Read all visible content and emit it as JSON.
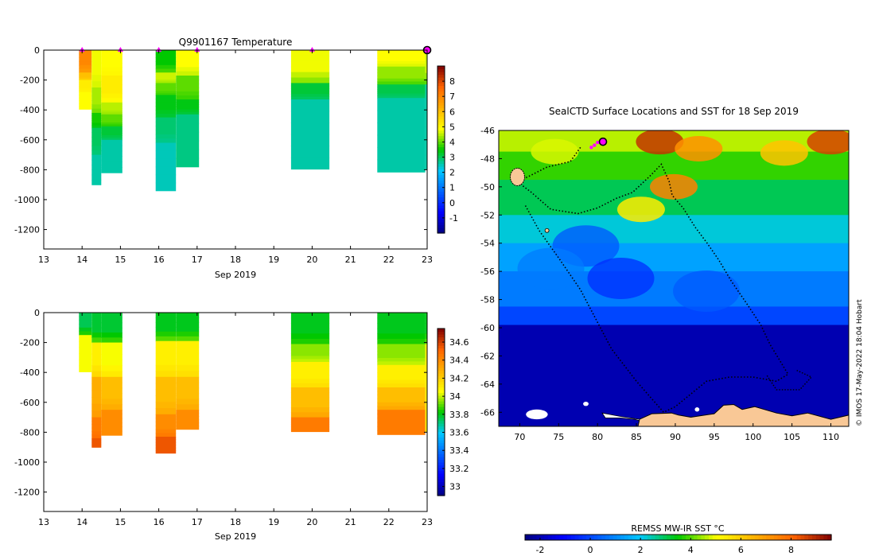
{
  "chart_data": [
    {
      "type": "heatmap",
      "title": "Q9901167  Temperature",
      "xlabel": "Sep 2019",
      "x_ticks": [
        "13",
        "14",
        "15",
        "16",
        "17",
        "18",
        "19",
        "20",
        "21",
        "22",
        "23"
      ],
      "xlim": [
        13,
        23
      ],
      "y_ticks": [
        0,
        -200,
        -400,
        -600,
        -800,
        -1000,
        -1200
      ],
      "ylim": [
        -1330,
        0
      ],
      "profile_markers": [
        14,
        15,
        16,
        17,
        20
      ],
      "latest_marker": 23,
      "colorbar": {
        "min": -2,
        "max": 9,
        "ticks": [
          "8",
          "7",
          "6",
          "5",
          "4",
          "3",
          "2",
          "1",
          "0",
          "-1"
        ]
      },
      "profiles": [
        {
          "x0": 13.92,
          "x1": 14.25,
          "bottom": -395,
          "layers": [
            [
              0,
              -150,
              7.0
            ],
            [
              -150,
              -200,
              6.0
            ],
            [
              -200,
              -280,
              5.2
            ],
            [
              -280,
              -395,
              4.9
            ]
          ]
        },
        {
          "x0": 14.25,
          "x1": 14.5,
          "bottom": -900,
          "layers": [
            [
              0,
              -250,
              4.8
            ],
            [
              -250,
              -420,
              4.4
            ],
            [
              -420,
              -520,
              3.6
            ],
            [
              -520,
              -700,
              3.0
            ],
            [
              -700,
              -900,
              2.6
            ]
          ]
        },
        {
          "x0": 14.5,
          "x1": 15.05,
          "bottom": -820,
          "layers": [
            [
              0,
              -170,
              4.9
            ],
            [
              -170,
              -350,
              5.2
            ],
            [
              -350,
              -430,
              4.5
            ],
            [
              -430,
              -510,
              4.0
            ],
            [
              -510,
              -600,
              3.2
            ],
            [
              -600,
              -820,
              2.6
            ]
          ]
        },
        {
          "x0": 15.92,
          "x1": 16.45,
          "bottom": -940,
          "layers": [
            [
              0,
              -150,
              3.5
            ],
            [
              -150,
              -220,
              4.6
            ],
            [
              -220,
              -300,
              4.0
            ],
            [
              -300,
              -450,
              3.4
            ],
            [
              -450,
              -620,
              2.9
            ],
            [
              -620,
              -940,
              2.5
            ]
          ]
        },
        {
          "x0": 16.45,
          "x1": 17.05,
          "bottom": -780,
          "layers": [
            [
              0,
              -170,
              4.9
            ],
            [
              -170,
              -330,
              4.0
            ],
            [
              -330,
              -430,
              3.4
            ],
            [
              -430,
              -780,
              2.8
            ]
          ]
        },
        {
          "x0": 19.45,
          "x1": 20.45,
          "bottom": -795,
          "layers": [
            [
              0,
              -220,
              4.8
            ],
            [
              -220,
              -330,
              3.2
            ],
            [
              -330,
              -795,
              2.6
            ]
          ]
        },
        {
          "x0": 21.7,
          "x1": 22.95,
          "bottom": -815,
          "layers": [
            [
              0,
              -110,
              4.9
            ],
            [
              -110,
              -230,
              4.3
            ],
            [
              -230,
              -320,
              3.1
            ],
            [
              -320,
              -815,
              2.6
            ]
          ]
        },
        {
          "x0": 22.95,
          "x1": 23.05,
          "bottom": -795,
          "layers": [
            [
              0,
              -230,
              4.6
            ],
            [
              -230,
              -795,
              2.6
            ]
          ]
        }
      ]
    },
    {
      "type": "heatmap",
      "title": "",
      "xlabel": "Sep 2019",
      "x_ticks": [
        "13",
        "14",
        "15",
        "16",
        "17",
        "18",
        "19",
        "20",
        "21",
        "22",
        "23"
      ],
      "xlim": [
        13,
        23
      ],
      "y_ticks": [
        0,
        -200,
        -400,
        -600,
        -800,
        -1000,
        -1200
      ],
      "ylim": [
        -1330,
        0
      ],
      "colorbar": {
        "min": 32.9,
        "max": 34.75,
        "ticks": [
          "34.6",
          "34.4",
          "34.2",
          "34",
          "33.8",
          "33.6",
          "33.4",
          "33.2",
          "33"
        ]
      },
      "profiles": [
        {
          "x0": 13.92,
          "x1": 14.25,
          "bottom": -395,
          "layers": [
            [
              0,
              -150,
              33.75
            ],
            [
              -150,
              -395,
              34.05
            ]
          ]
        },
        {
          "x0": 14.25,
          "x1": 14.5,
          "bottom": -900,
          "layers": [
            [
              0,
              -200,
              33.78
            ],
            [
              -200,
              -430,
              34.1
            ],
            [
              -430,
              -700,
              34.3
            ],
            [
              -700,
              -840,
              34.45
            ],
            [
              -840,
              -900,
              34.55
            ]
          ]
        },
        {
          "x0": 14.5,
          "x1": 15.05,
          "bottom": -820,
          "layers": [
            [
              0,
              -200,
              33.78
            ],
            [
              -200,
              -430,
              34.05
            ],
            [
              -430,
              -650,
              34.25
            ],
            [
              -650,
              -820,
              34.4
            ]
          ]
        },
        {
          "x0": 15.92,
          "x1": 16.45,
          "bottom": -940,
          "layers": [
            [
              0,
              -190,
              33.8
            ],
            [
              -190,
              -430,
              34.1
            ],
            [
              -430,
              -680,
              34.25
            ],
            [
              -680,
              -830,
              34.4
            ],
            [
              -830,
              -940,
              34.55
            ]
          ]
        },
        {
          "x0": 16.45,
          "x1": 17.05,
          "bottom": -780,
          "layers": [
            [
              0,
              -190,
              33.8
            ],
            [
              -190,
              -430,
              34.1
            ],
            [
              -430,
              -650,
              34.25
            ],
            [
              -650,
              -780,
              34.4
            ]
          ]
        },
        {
          "x0": 19.45,
          "x1": 20.45,
          "bottom": -795,
          "layers": [
            [
              0,
              -210,
              33.8
            ],
            [
              -210,
              -330,
              33.95
            ],
            [
              -330,
              -500,
              34.1
            ],
            [
              -500,
              -700,
              34.25
            ],
            [
              -700,
              -795,
              34.45
            ]
          ]
        },
        {
          "x0": 21.7,
          "x1": 22.95,
          "bottom": -815,
          "layers": [
            [
              0,
              -210,
              33.8
            ],
            [
              -210,
              -350,
              33.95
            ],
            [
              -350,
              -500,
              34.1
            ],
            [
              -500,
              -650,
              34.25
            ],
            [
              -650,
              -815,
              34.45
            ]
          ]
        },
        {
          "x0": 22.95,
          "x1": 23.05,
          "bottom": -795,
          "layers": [
            [
              0,
              -210,
              33.8
            ],
            [
              -210,
              -795,
              34.1
            ]
          ]
        }
      ]
    },
    {
      "type": "heatmap",
      "title": "SealCTD Surface Locations and SST for 18 Sep 2019",
      "xlabel": "",
      "ylabel": "",
      "x_ticks": [
        "70",
        "75",
        "80",
        "85",
        "90",
        "95",
        "100",
        "105",
        "110"
      ],
      "x_tick_values": [
        70,
        75,
        80,
        85,
        90,
        95,
        100,
        105,
        110
      ],
      "xlim": [
        67.3,
        112.3
      ],
      "y_ticks": [
        "-46",
        "-48",
        "-50",
        "-52",
        "-54",
        "-56",
        "-58",
        "-60",
        "-62",
        "-64",
        "-66"
      ],
      "y_tick_values": [
        -46,
        -48,
        -50,
        -52,
        -54,
        -56,
        -58,
        -60,
        -62,
        -64,
        -66
      ],
      "ylim": [
        -67,
        -46
      ],
      "colorbar": {
        "label": "REMSS MW-IR SST °C",
        "min": -2.6,
        "max": 9.6,
        "ticks": [
          "-2",
          "0",
          "2",
          "4",
          "6",
          "8"
        ],
        "tick_values": [
          -2,
          0,
          2,
          4,
          6,
          8
        ]
      },
      "sst_zones": [
        {
          "lat_top": -46,
          "lat_bottom": -47.5,
          "sst": 4.6
        },
        {
          "lat_top": -47.5,
          "lat_bottom": -49.5,
          "sst": 3.8
        },
        {
          "lat_top": -49.5,
          "lat_bottom": -52,
          "sst": 3.0
        },
        {
          "lat_top": -52,
          "lat_bottom": -54,
          "sst": 2.2
        },
        {
          "lat_top": -54,
          "lat_bottom": -56,
          "sst": 1.4
        },
        {
          "lat_top": -56,
          "lat_bottom": -58.5,
          "sst": 0.8
        },
        {
          "lat_top": -58.5,
          "lat_bottom": -59.8,
          "sst": 0.0
        },
        {
          "lat_top": -59.8,
          "lat_bottom": -67,
          "sst": -2.0
        }
      ],
      "warm_patches": [
        {
          "lon": 88,
          "lat": -46.8,
          "sst": 8.8
        },
        {
          "lon": 93,
          "lat": -47.3,
          "sst": 7.2
        },
        {
          "lon": 110,
          "lat": -46.8,
          "sst": 8.6
        },
        {
          "lon": 104,
          "lat": -47.6,
          "sst": 6.2
        },
        {
          "lon": 89.8,
          "lat": -50.0,
          "sst": 7.5
        },
        {
          "lon": 85.6,
          "lat": -51.6,
          "sst": 5.4
        },
        {
          "lon": 74.5,
          "lat": -47.5,
          "sst": 4.8
        }
      ],
      "cool_patches": [
        {
          "lon": 78.5,
          "lat": -54.2,
          "sst": 0.2
        },
        {
          "lon": 83,
          "lat": -56.5,
          "sst": -0.4
        },
        {
          "lon": 94,
          "lat": -57.4,
          "sst": 0.3
        },
        {
          "lon": 74,
          "lat": -55.8,
          "sst": 0.8
        }
      ],
      "track": [
        [
          77.8,
          -47.2
        ],
        [
          76.5,
          -48.2
        ],
        [
          73.5,
          -48.6
        ],
        [
          71,
          -49.3
        ],
        [
          69.6,
          -49.6
        ],
        [
          71.5,
          -50.4
        ],
        [
          74,
          -51.6
        ],
        [
          77.5,
          -51.9
        ],
        [
          80,
          -51.5
        ],
        [
          82.5,
          -50.8
        ],
        [
          84.5,
          -50.4
        ],
        [
          86.8,
          -49.2
        ],
        [
          88.2,
          -48.4
        ],
        [
          89.2,
          -49.6
        ],
        [
          89.6,
          -50.6
        ],
        [
          91,
          -51.5
        ],
        [
          92.6,
          -52.9
        ],
        [
          94.1,
          -54
        ],
        [
          95.6,
          -55.2
        ],
        [
          97.2,
          -56.7
        ],
        [
          99.2,
          -58.3
        ],
        [
          101,
          -59.8
        ],
        [
          102.2,
          -61.2
        ],
        [
          103.3,
          -62.2
        ],
        [
          104.5,
          -63.3
        ],
        [
          103,
          -63.8
        ],
        [
          100,
          -63.5
        ],
        [
          97,
          -63.5
        ],
        [
          94,
          -63.8
        ],
        [
          92,
          -64.7
        ],
        [
          90,
          -65.6
        ],
        [
          88.5,
          -66
        ],
        [
          85,
          -63.8
        ],
        [
          81.8,
          -61.5
        ],
        [
          79.8,
          -59.4
        ],
        [
          77.8,
          -57.3
        ],
        [
          75.2,
          -55.2
        ],
        [
          72.5,
          -53.1
        ],
        [
          70.7,
          -51.3
        ]
      ],
      "track2": [
        [
          101.8,
          -63.4
        ],
        [
          103,
          -64.4
        ],
        [
          106,
          -64.4
        ],
        [
          107.5,
          -63.5
        ],
        [
          105.5,
          -63
        ]
      ],
      "kerguelen": {
        "lon": 69.7,
        "lat": -49.3
      },
      "heard": {
        "lon": 73.5,
        "lat": -53.1
      },
      "latest_fix": {
        "lon": 80.7,
        "lat": -46.8
      },
      "recent_fixes": [
        [
          79.2,
          -47.2
        ],
        [
          79.6,
          -47.05
        ],
        [
          80.0,
          -46.85
        ]
      ],
      "antarctica": [
        [
          85.2,
          -67
        ],
        [
          85.4,
          -66.5
        ],
        [
          87,
          -66.1
        ],
        [
          89.5,
          -66.05
        ],
        [
          90.4,
          -66.2
        ],
        [
          92,
          -66.35
        ],
        [
          95,
          -66.1
        ],
        [
          96.2,
          -65.5
        ],
        [
          97.5,
          -65.45
        ],
        [
          98.6,
          -65.8
        ],
        [
          100.2,
          -65.6
        ],
        [
          103,
          -66.05
        ],
        [
          105,
          -66.25
        ],
        [
          107,
          -66.05
        ],
        [
          110,
          -66.5
        ],
        [
          112.3,
          -66.2
        ],
        [
          112.3,
          -67
        ]
      ],
      "ice_shelf": [
        [
          80.6,
          -66.05
        ],
        [
          83,
          -66.3
        ],
        [
          85.4,
          -66.5
        ],
        [
          87,
          -66.1
        ],
        [
          89.5,
          -66.05
        ],
        [
          88.8,
          -66.6
        ],
        [
          86.7,
          -66.8
        ],
        [
          84.8,
          -66.5
        ],
        [
          82.9,
          -66.4
        ],
        [
          81,
          -66.4
        ]
      ],
      "ice_patches": [
        {
          "lon": 72.2,
          "lat": -66.15,
          "rx": 1.4,
          "ry": 0.35
        },
        {
          "lon": 78.5,
          "lat": -65.4,
          "rx": 0.35,
          "ry": 0.15
        },
        {
          "lon": 92.8,
          "lat": -65.8,
          "rx": 0.3,
          "ry": 0.15
        }
      ],
      "credit": "© IMOS 17-May-2022 18:04 Hobart"
    }
  ]
}
